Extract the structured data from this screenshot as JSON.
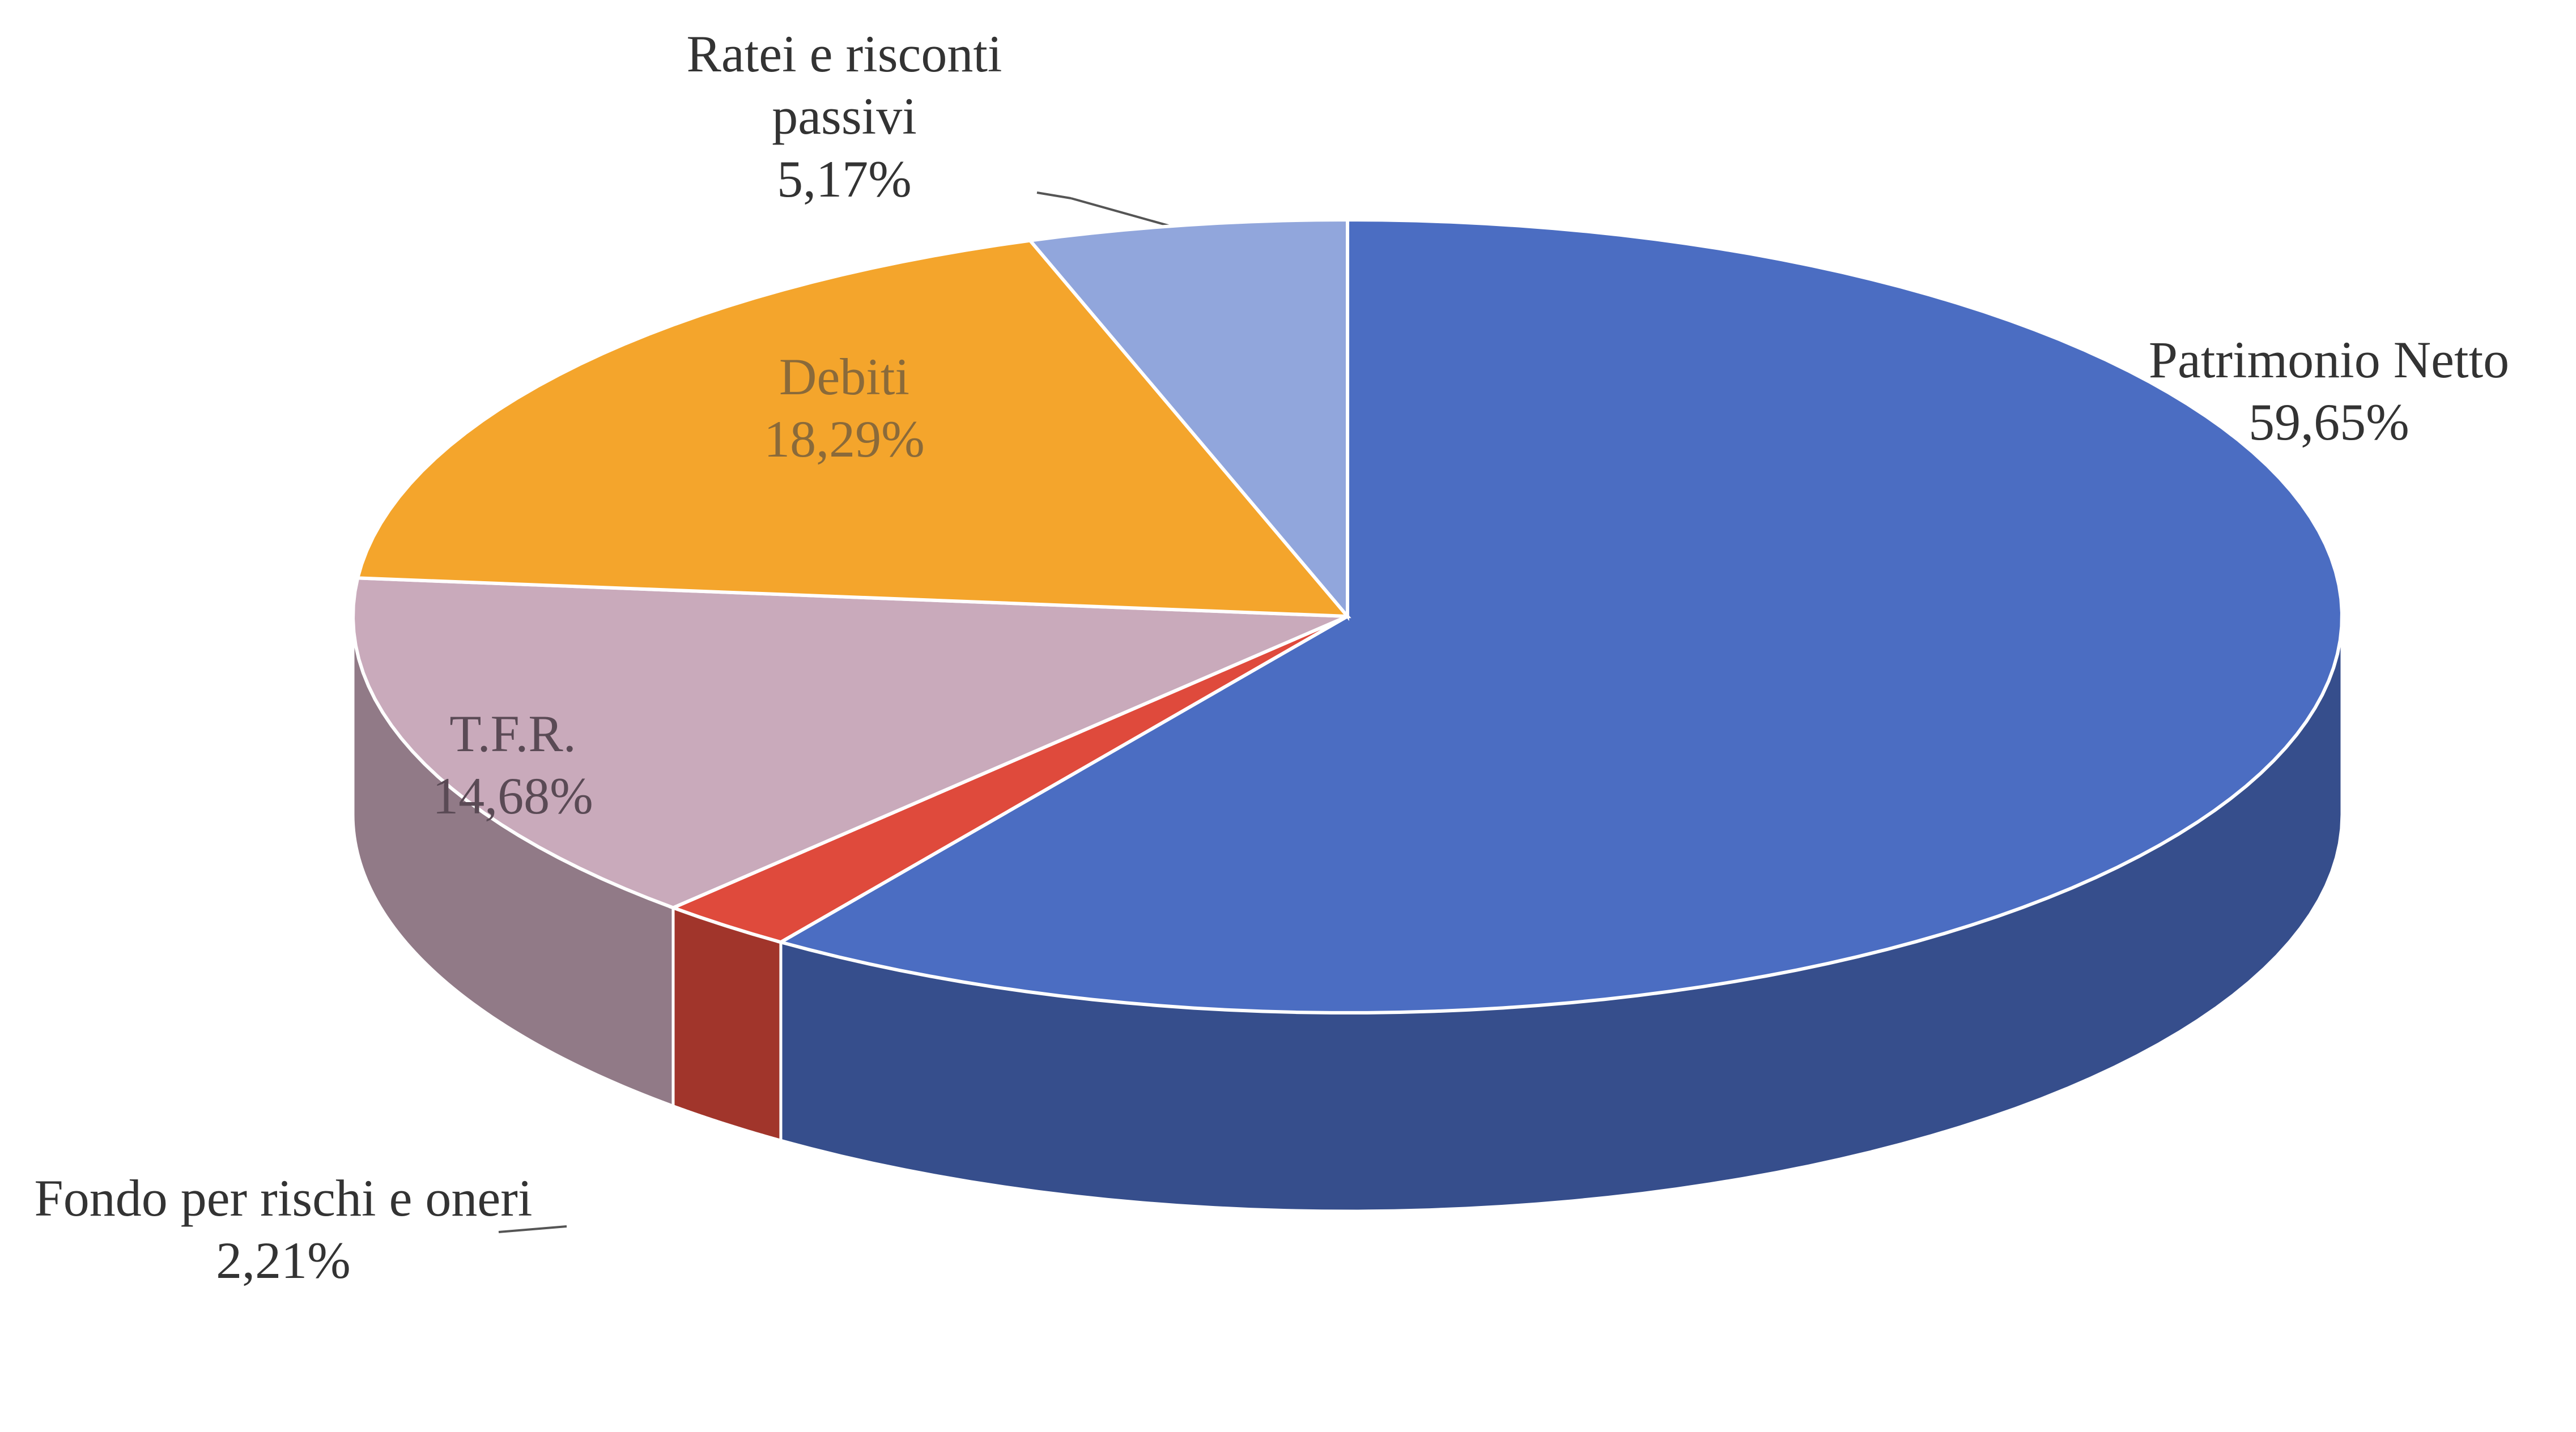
{
  "chart_data": {
    "type": "pie",
    "three_d": true,
    "categories": [
      "Patrimonio Netto",
      "Fondo per rischi e oneri",
      "T.F.R.",
      "Debiti",
      "Ratei e risconti passivi"
    ],
    "values": [
      59.65,
      2.21,
      14.68,
      18.29,
      5.17
    ],
    "value_labels": [
      "59,65%",
      "2,21%",
      "14,68%",
      "18,29%",
      "5,17%"
    ],
    "colors": [
      "#4b6dc2",
      "#df4a3c",
      "#c9aabb",
      "#f4a52c",
      "#91a6dc"
    ]
  }
}
